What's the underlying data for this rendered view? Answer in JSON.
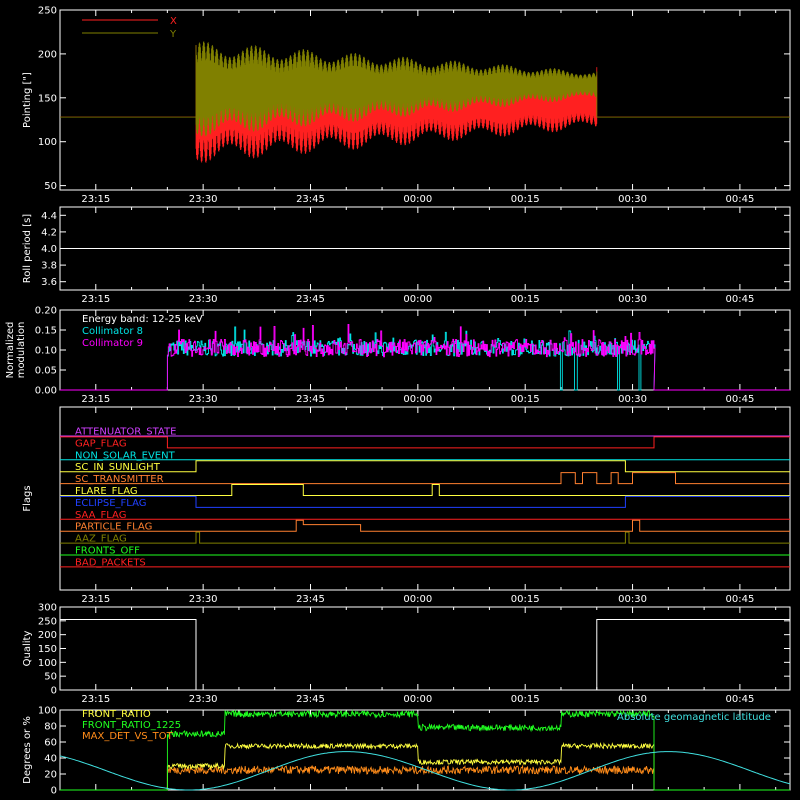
{
  "colors": {
    "background": "#000000",
    "axis": "#ffffff",
    "red": "#ff2020",
    "olive": "#808000",
    "cyan": "#00e5e5",
    "magenta": "#ff00ff",
    "white": "#ffffff",
    "yellow": "#ffff40",
    "green": "#20ff20",
    "orange": "#ff8c1a",
    "blue": "#2040ff",
    "purple": "#d040ff",
    "flag_orange": "#ff8030",
    "lightcyan": "#40e0e0"
  },
  "chart_data": [
    {
      "type": "line",
      "id": "pointing",
      "ylabel": "Pointing [\"]",
      "xlim": [
        "23:10",
        "00:52"
      ],
      "ylim": [
        45,
        250
      ],
      "yticks": [
        50,
        100,
        150,
        200,
        250
      ],
      "xticks": [
        "23:15",
        "23:30",
        "23:45",
        "00:00",
        "00:15",
        "00:30",
        "00:45"
      ],
      "legend_position": "top-left",
      "series": [
        {
          "name": "X",
          "color": "red",
          "baseline": 128,
          "active_start": "23:29",
          "active_end": "00:25",
          "center_start": 140,
          "center_end": 145,
          "amp_start": 65,
          "amp_end": 30,
          "start_value": 210,
          "end_value": 185
        },
        {
          "name": "Y",
          "color": "olive",
          "baseline": 128,
          "active_start": "23:29",
          "active_end": "00:25",
          "center_start": 160,
          "center_end": 165,
          "amp_start": 55,
          "amp_end": 15,
          "start_value": 210,
          "end_value": 180
        }
      ]
    },
    {
      "type": "line",
      "id": "roll",
      "ylabel": "Roll period [s]",
      "xlim": [
        "23:10",
        "00:52"
      ],
      "ylim": [
        3.5,
        4.5
      ],
      "yticks": [
        "3.6",
        "3.8",
        "4.0",
        "4.2",
        "4.4"
      ],
      "xticks": [
        "23:15",
        "23:30",
        "23:45",
        "00:00",
        "00:15",
        "00:30",
        "00:45"
      ],
      "series": [
        {
          "name": "",
          "color": "white",
          "constant": 4.0
        }
      ]
    },
    {
      "type": "line",
      "id": "modulation",
      "ylabel": "Normalized modulation",
      "xlim": [
        "23:10",
        "00:52"
      ],
      "ylim": [
        0,
        0.2
      ],
      "yticks": [
        "0.00",
        "0.05",
        "0.10",
        "0.15",
        "0.20"
      ],
      "xticks": [
        "23:15",
        "23:30",
        "23:45",
        "00:00",
        "00:15",
        "00:30",
        "00:45"
      ],
      "annotation": "Energy band: 12-25 keV",
      "series": [
        {
          "name": "Collimator 8",
          "color": "cyan",
          "active_start": "23:25",
          "active_end": "00:33",
          "mean": 0.105,
          "noise": 0.02,
          "dropouts": [
            "00:20",
            "00:22",
            "00:28",
            "00:31"
          ]
        },
        {
          "name": "Collimator 9",
          "color": "magenta",
          "active_start": "23:25",
          "active_end": "00:33",
          "mean": 0.105,
          "noise": 0.022
        }
      ]
    },
    {
      "type": "line",
      "id": "flags",
      "ylabel": "Flags",
      "xlim": [
        "23:10",
        "00:52"
      ],
      "xticks": [
        "23:15",
        "23:30",
        "23:45",
        "00:00",
        "00:15",
        "00:30",
        "00:45"
      ],
      "series": [
        {
          "name": "ATTENUATOR_STATE",
          "color": "purple",
          "changes": [
            [
              "23:10",
              0
            ]
          ]
        },
        {
          "name": "GAP_FLAG",
          "color": "red",
          "changes": [
            [
              "23:10",
              1
            ],
            [
              "23:25",
              0
            ],
            [
              "00:33",
              1
            ]
          ]
        },
        {
          "name": "NON_SOLAR_EVENT",
          "color": "cyan",
          "changes": [
            [
              "23:10",
              0
            ]
          ]
        },
        {
          "name": "SC_IN_SUNLIGHT",
          "color": "yellow",
          "changes": [
            [
              "23:10",
              0
            ],
            [
              "23:29",
              1
            ],
            [
              "00:29",
              0
            ]
          ]
        },
        {
          "name": "SC_TRANSMITTER",
          "color": "flag_orange",
          "changes": [
            [
              "23:10",
              0
            ],
            [
              "00:20",
              1
            ],
            [
              "00:22",
              0
            ],
            [
              "00:23",
              1
            ],
            [
              "00:25",
              0
            ],
            [
              "00:27",
              1
            ],
            [
              "00:28",
              0
            ],
            [
              "00:30",
              1
            ],
            [
              "00:36",
              0
            ]
          ]
        },
        {
          "name": "FLARE_FLAG",
          "color": "yellow",
          "changes": [
            [
              "23:10",
              0
            ],
            [
              "23:34",
              1
            ],
            [
              "23:44",
              0
            ],
            [
              "00:02",
              1
            ],
            [
              "00:03",
              0
            ]
          ]
        },
        {
          "name": "ECLIPSE_FLAG",
          "color": "blue",
          "changes": [
            [
              "23:10",
              1
            ],
            [
              "23:29",
              0
            ],
            [
              "00:29",
              1
            ]
          ]
        },
        {
          "name": "SAA_FLAG",
          "color": "red",
          "changes": [
            [
              "23:10",
              0
            ]
          ]
        },
        {
          "name": "PARTICLE_FLAG",
          "color": "flag_orange",
          "changes": [
            [
              "23:10",
              0
            ],
            [
              "23:43",
              1
            ],
            [
              "23:44",
              0.6
            ],
            [
              "23:52",
              0
            ],
            [
              "00:30",
              1
            ],
            [
              "00:31",
              0
            ]
          ]
        },
        {
          "name": "AAZ_FLAG",
          "color": "olive",
          "changes": [
            [
              "23:10",
              0
            ],
            [
              "23:29",
              1
            ],
            [
              "23:29.5",
              0
            ],
            [
              "00:29",
              1
            ],
            [
              "00:29.5",
              0
            ]
          ]
        },
        {
          "name": "FRONTS_OFF",
          "color": "green",
          "changes": [
            [
              "23:10",
              0
            ]
          ]
        },
        {
          "name": "BAD_PACKETS",
          "color": "red",
          "changes": [
            [
              "23:10",
              0
            ]
          ]
        }
      ]
    },
    {
      "type": "line",
      "id": "quality",
      "ylabel": "Quality",
      "xlim": [
        "23:10",
        "00:52"
      ],
      "ylim": [
        0,
        300
      ],
      "yticks": [
        0,
        50,
        100,
        150,
        200,
        250,
        300
      ],
      "xticks": [
        "23:15",
        "23:30",
        "23:45",
        "00:00",
        "00:15",
        "00:30",
        "00:45"
      ],
      "series": [
        {
          "name": "",
          "color": "white",
          "changes": [
            [
              "23:10",
              255
            ],
            [
              "23:29",
              0
            ],
            [
              "00:25",
              255
            ]
          ]
        }
      ]
    },
    {
      "type": "line",
      "id": "ratios",
      "ylabel": "Degrees or %",
      "xlim": [
        "23:10",
        "00:52"
      ],
      "ylim": [
        0,
        100
      ],
      "yticks": [
        0,
        20,
        40,
        60,
        80,
        100
      ],
      "series": [
        {
          "name": "FRONT_RATIO",
          "color": "yellow",
          "active_start": "23:25",
          "active_end": "00:33",
          "levels": [
            [
              "23:25",
              30
            ],
            [
              "23:33",
              55
            ],
            [
              "00:00",
              35
            ],
            [
              "00:20",
              55
            ]
          ],
          "noise": 3
        },
        {
          "name": "FRONT_RATIO_1225",
          "color": "green",
          "active_start": "23:25",
          "active_end": "00:33",
          "levels": [
            [
              "23:25",
              70
            ],
            [
              "23:33",
              95
            ],
            [
              "00:00",
              78
            ],
            [
              "00:20",
              95
            ]
          ],
          "noise": 4
        },
        {
          "name": "MAX_DET_VS_TOT",
          "color": "orange",
          "active_start": "23:25",
          "active_end": "00:33",
          "levels": [
            [
              "23:25",
              25
            ]
          ],
          "noise": 5
        },
        {
          "name": "Absolute geomagnetic latitude",
          "color": "lightcyan",
          "wave": {
            "minima": [
              "23:28",
              "00:13",
              "00:58"
            ],
            "maxima": [
              "23:05",
              "23:50",
              "00:35"
            ],
            "min": 0,
            "max": 48
          }
        }
      ]
    }
  ]
}
